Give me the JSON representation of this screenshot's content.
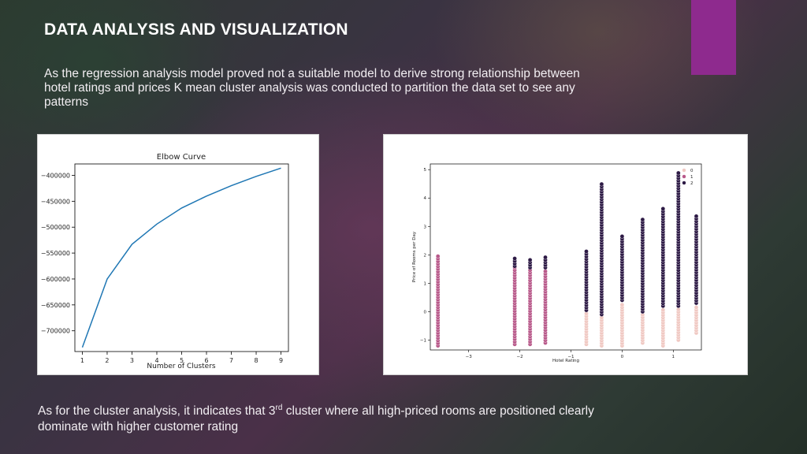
{
  "slide": {
    "title": "DATA ANALYSIS AND VISUALIZATION",
    "intro": "As the regression analysis model proved not a suitable model to derive strong relationship between hotel ratings and prices K mean cluster analysis was conducted to partition the data set to see any patterns",
    "outro_part1": "As for the cluster analysis, it indicates that 3",
    "outro_sup": "rd",
    "outro_part2": " cluster where all high-priced rooms are positioned clearly dominate with higher customer rating",
    "accent_color": "#8e2a8e"
  },
  "chart_data": [
    {
      "type": "line",
      "title": "Elbow Curve",
      "xlabel": "Number of Clusters",
      "ylabel": "",
      "x": [
        1,
        2,
        3,
        4,
        5,
        6,
        7,
        8,
        9
      ],
      "series": [
        {
          "values": [
            -732000,
            -600000,
            -533000,
            -494000,
            -463000,
            -440000,
            -420000,
            -402000,
            -386000
          ],
          "color": "#1f77b4"
        }
      ],
      "xlim": [
        0.7,
        9.3
      ],
      "ylim": [
        -740000,
        -378000
      ],
      "xticks": [
        "1",
        "2",
        "3",
        "4",
        "5",
        "6",
        "7",
        "8",
        "9"
      ],
      "yticks": [
        {
          "value": -400000,
          "label": "−400000"
        },
        {
          "value": -450000,
          "label": "−450000"
        },
        {
          "value": -500000,
          "label": "−500000"
        },
        {
          "value": -550000,
          "label": "−550000"
        },
        {
          "value": -600000,
          "label": "−600000"
        },
        {
          "value": -650000,
          "label": "−650000"
        },
        {
          "value": -700000,
          "label": "−700000"
        }
      ],
      "grid": false
    },
    {
      "type": "scatter",
      "title": "",
      "xlabel": "Hotel Rating",
      "ylabel": "Price of Rooms per Day",
      "xlim": [
        -3.75,
        1.55
      ],
      "ylim": [
        -1.35,
        5.2
      ],
      "xticks": [
        {
          "value": -3,
          "label": "−3"
        },
        {
          "value": -2,
          "label": "−2"
        },
        {
          "value": -1,
          "label": "−1"
        },
        {
          "value": 0,
          "label": "0"
        },
        {
          "value": 1,
          "label": "1"
        }
      ],
      "yticks": [
        {
          "value": -1,
          "label": "−1"
        },
        {
          "value": 0,
          "label": "0"
        },
        {
          "value": 1,
          "label": "1"
        },
        {
          "value": 2,
          "label": "2"
        },
        {
          "value": 3,
          "label": "3"
        },
        {
          "value": 4,
          "label": "4"
        },
        {
          "value": 5,
          "label": "5"
        }
      ],
      "legend": {
        "placement": "top-right",
        "entries": [
          "0",
          "1",
          "2"
        ]
      },
      "cluster_colors": [
        "#f0c9c3",
        "#b8598a",
        "#2d1a45"
      ],
      "columns": [
        {
          "x": -3.6,
          "segments": [
            {
              "cluster": 1,
              "from": -1.2,
              "to": 2.0
            }
          ]
        },
        {
          "x": -2.1,
          "segments": [
            {
              "cluster": 1,
              "from": -1.15,
              "to": 1.55
            },
            {
              "cluster": 2,
              "from": 1.6,
              "to": 1.95
            }
          ]
        },
        {
          "x": -1.8,
          "segments": [
            {
              "cluster": 1,
              "from": -1.15,
              "to": 1.5
            },
            {
              "cluster": 2,
              "from": 1.55,
              "to": 1.9
            }
          ]
        },
        {
          "x": -1.5,
          "segments": [
            {
              "cluster": 1,
              "from": -1.1,
              "to": 1.5
            },
            {
              "cluster": 2,
              "from": 1.55,
              "to": 1.95
            }
          ]
        },
        {
          "x": -0.7,
          "segments": [
            {
              "cluster": 0,
              "from": -1.15,
              "to": 0.0
            },
            {
              "cluster": 2,
              "from": 0.05,
              "to": 2.2
            }
          ]
        },
        {
          "x": -0.4,
          "segments": [
            {
              "cluster": 0,
              "from": -1.2,
              "to": -0.2
            },
            {
              "cluster": 2,
              "from": -0.1,
              "to": 4.5
            }
          ]
        },
        {
          "x": 0.0,
          "segments": [
            {
              "cluster": 0,
              "from": -1.2,
              "to": 0.3
            },
            {
              "cluster": 2,
              "from": 0.4,
              "to": 2.7
            }
          ]
        },
        {
          "x": 0.4,
          "segments": [
            {
              "cluster": 0,
              "from": -1.1,
              "to": -0.1
            },
            {
              "cluster": 2,
              "from": 0.0,
              "to": 3.25
            }
          ]
        },
        {
          "x": 0.8,
          "segments": [
            {
              "cluster": 0,
              "from": -1.2,
              "to": 0.1
            },
            {
              "cluster": 2,
              "from": 0.2,
              "to": 3.7
            }
          ]
        },
        {
          "x": 1.1,
          "segments": [
            {
              "cluster": 0,
              "from": -1.0,
              "to": 0.1
            },
            {
              "cluster": 2,
              "from": 0.2,
              "to": 4.9
            }
          ]
        },
        {
          "x": 1.45,
          "segments": [
            {
              "cluster": 0,
              "from": -0.75,
              "to": 0.2
            },
            {
              "cluster": 2,
              "from": 0.3,
              "to": 3.4
            }
          ]
        }
      ]
    }
  ]
}
